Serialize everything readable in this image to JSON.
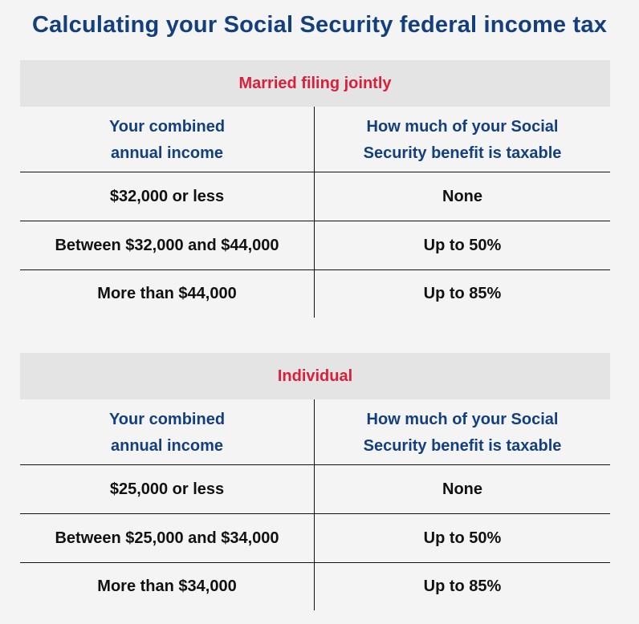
{
  "title": "Calculating your Social Security federal income tax",
  "colors": {
    "title": "#143f7e",
    "band_label": "#d8203a",
    "band_bg": "#e4e4e4",
    "page_bg": "#f4f4f4",
    "body_text": "#111111"
  },
  "tables": [
    {
      "label": "Married filing jointly",
      "headers": [
        "Your combined annual income",
        "How much of your Social Security benefit is taxable"
      ],
      "header_lines": [
        [
          "Your combined",
          "annual income"
        ],
        [
          "How much of your Social",
          "Security benefit is taxable"
        ]
      ],
      "rows": [
        {
          "income": "$32,000 or less",
          "taxable": "None"
        },
        {
          "income": "Between $32,000 and $44,000",
          "taxable": "Up to 50%"
        },
        {
          "income": "More than $44,000",
          "taxable": "Up to 85%"
        }
      ]
    },
    {
      "label": "Individual",
      "headers": [
        "Your combined annual income",
        "How much of your Social Security benefit is taxable"
      ],
      "header_lines": [
        [
          "Your combined",
          "annual income"
        ],
        [
          "How much of your Social",
          "Security benefit is taxable"
        ]
      ],
      "rows": [
        {
          "income": "$25,000 or less",
          "taxable": "None"
        },
        {
          "income": "Between $25,000 and $34,000",
          "taxable": "Up to 50%"
        },
        {
          "income": "More than $34,000",
          "taxable": "Up to 85%"
        }
      ]
    }
  ]
}
